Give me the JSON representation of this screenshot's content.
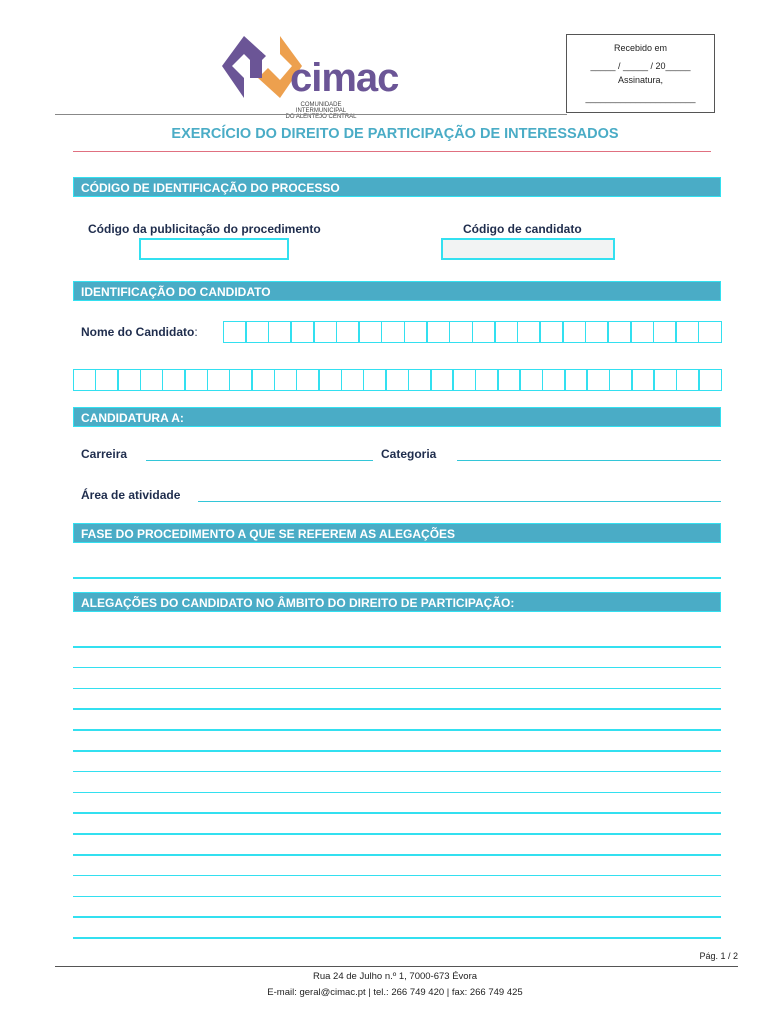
{
  "logo": {
    "text": "cimac",
    "subtitle_line1": "COMUNIDADE INTERMUNICIPAL",
    "subtitle_line2": "DO ALENTEJO CENTRAL",
    "colors": {
      "purple": "#6b5596",
      "orange": "#eda04e"
    }
  },
  "receipt": {
    "received": "Recebido em",
    "date": "_____ / _____ / 20_____",
    "signature": "Assinatura,",
    "signature_line": "______________________"
  },
  "title": "EXERCÍCIO DO DIREITO DE PARTICIPAÇÃO DE INTERESSADOS",
  "sections": {
    "process": {
      "header": "CÓDIGO DE IDENTIFICAÇÃO DO PROCESSO",
      "pub_code_label": "Código da publicitação do procedimento",
      "candidate_code_label": "Código de candidato"
    },
    "candidate": {
      "header": "IDENTIFICAÇÃO DO CANDIDATO",
      "name_label": "Nome do Candidato",
      ":": ":"
    },
    "application": {
      "header": "CANDIDATURA A:",
      "career_label": "Carreira",
      "category_label": "Categoria",
      "area_label": "Área de atividade"
    },
    "phase": {
      "header": "FASE DO PROCEDIMENTO A QUE SE REFEREM AS ALEGAÇÕES"
    },
    "allegations": {
      "header": "ALEGAÇÕES DO CANDIDATO NO ÂMBITO DO DIREITO DE PARTICIPAÇÃO:"
    }
  },
  "footer": {
    "page": "Pág. 1 / 2",
    "address": "Rua 24 de Julho n.º 1, 7000-673 Évora",
    "contacts": "E-mail: geral@cimac.pt  | tel.: 266 749 420 | fax: 266 749 425"
  },
  "colors": {
    "header_bar": "#4aacc6",
    "title": "#4aacc6",
    "field_border": "#33e0f0",
    "title_rule": "#e07080"
  }
}
